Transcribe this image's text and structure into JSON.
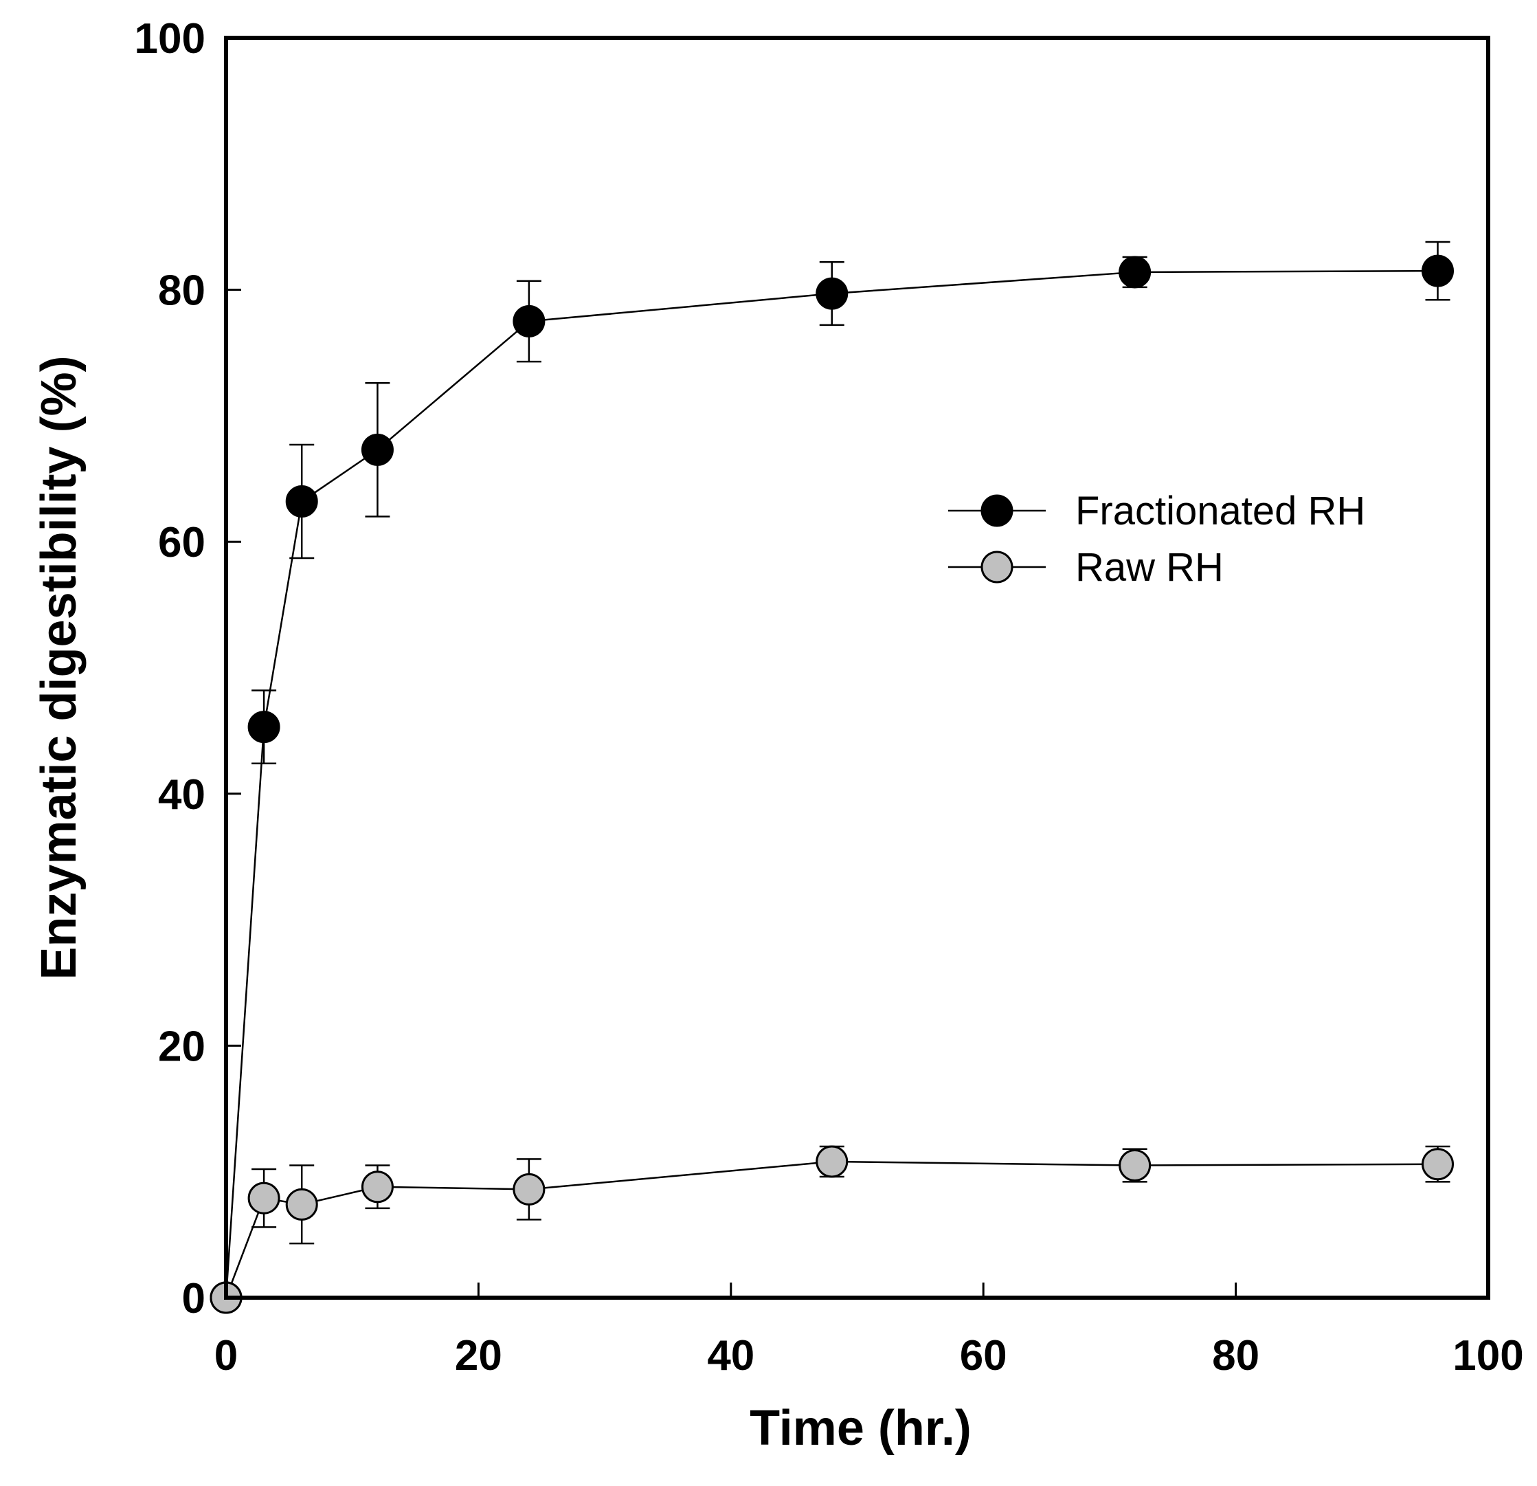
{
  "chart_data": {
    "type": "line",
    "title": "",
    "xlabel": "Time (hr.)",
    "ylabel": "Enzymatic digestibility (%)",
    "xlim": [
      0,
      100
    ],
    "ylim": [
      0,
      100
    ],
    "xticks": [
      0,
      20,
      40,
      60,
      80,
      100
    ],
    "yticks": [
      0,
      20,
      40,
      60,
      80,
      100
    ],
    "xtick_labels": [
      "0",
      "20",
      "40",
      "60",
      "80",
      "100"
    ],
    "ytick_labels": [
      "0",
      "20",
      "40",
      "60",
      "80",
      "100"
    ],
    "grid": false,
    "legend_position": "center-right",
    "series": [
      {
        "name": "Fractionated RH",
        "marker_color": "#000000",
        "x": [
          0,
          3,
          6,
          12,
          24,
          48,
          72,
          96
        ],
        "y": [
          0,
          45.3,
          63.2,
          67.3,
          77.5,
          79.7,
          81.4,
          81.5
        ],
        "err": [
          0,
          2.9,
          4.5,
          5.3,
          3.2,
          2.5,
          1.2,
          2.3
        ]
      },
      {
        "name": "Raw RH",
        "marker_color": "#c0c0c0",
        "x": [
          0,
          3,
          6,
          12,
          24,
          48,
          72,
          96
        ],
        "y": [
          0,
          7.9,
          7.4,
          8.8,
          8.6,
          10.8,
          10.5,
          10.6
        ],
        "err": [
          0,
          2.3,
          3.1,
          1.7,
          2.4,
          1.2,
          1.3,
          1.4
        ]
      }
    ]
  }
}
